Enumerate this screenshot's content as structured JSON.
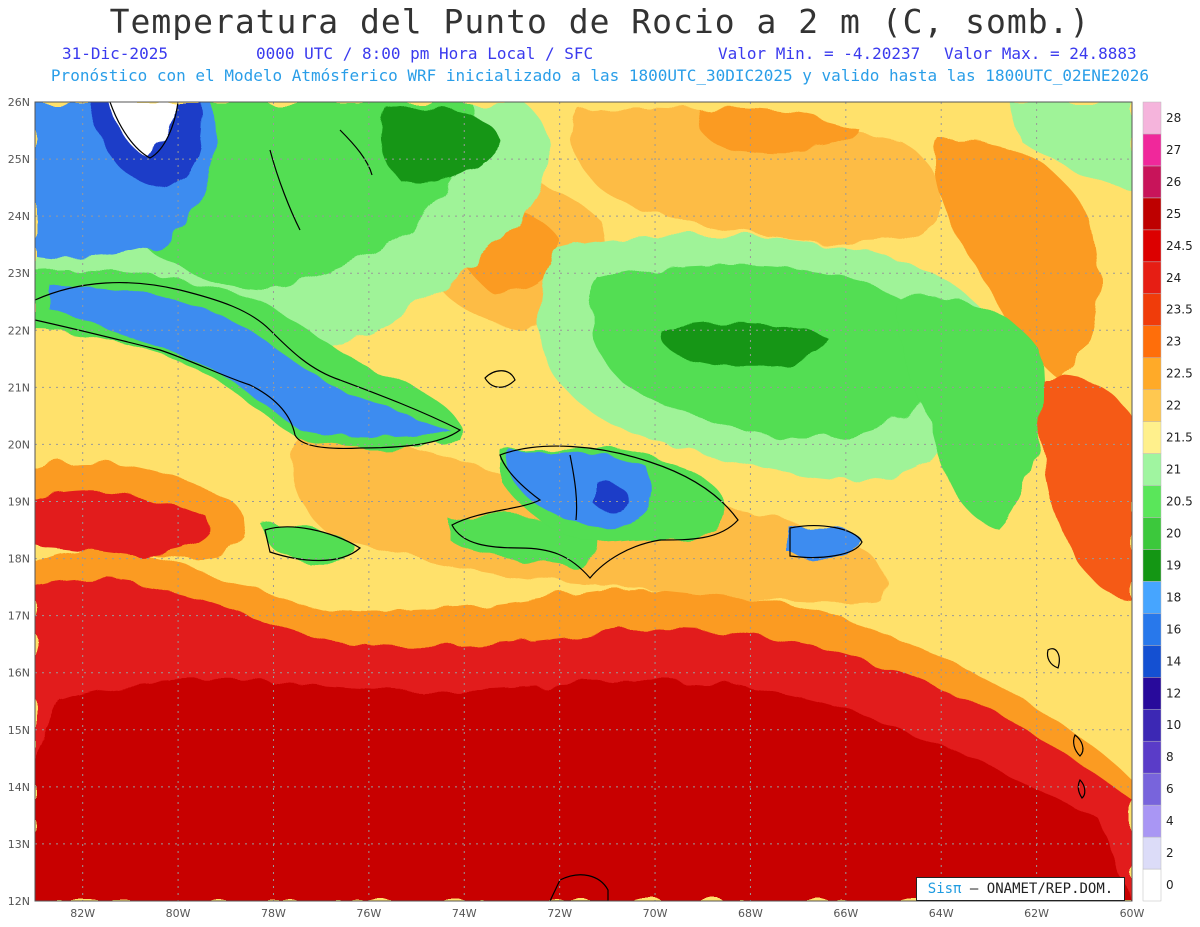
{
  "header": {
    "title": "Temperatura del Punto de Rocio a 2 m (C, somb.)",
    "date": "31-Dic-2025",
    "time_info": "0000 UTC / 8:00 pm Hora Local / SFC",
    "min_value": "Valor Min. = -4.20237",
    "max_value": "Valor Max. = 24.8883",
    "model_info": "Pronóstico con el Modelo Atmósferico WRF inicializado a las 1800UTC_30DIC2025 y valido hasta las  1800UTC_02ENE2026"
  },
  "map": {
    "lat_range": [
      12,
      26
    ],
    "lon_range": [
      -83,
      -60
    ],
    "lat_labels": [
      "12N",
      "13N",
      "14N",
      "15N",
      "16N",
      "17N",
      "18N",
      "19N",
      "20N",
      "21N",
      "22N",
      "23N",
      "24N",
      "25N",
      "26N"
    ],
    "lon_labels": [
      "82W",
      "80W",
      "78W",
      "76W",
      "74W",
      "72W",
      "70W",
      "68W",
      "66W",
      "64W",
      "62W",
      "60W"
    ],
    "lon_values": [
      -82,
      -80,
      -78,
      -76,
      -74,
      -72,
      -70,
      -68,
      -66,
      -64,
      -62,
      -60
    ],
    "colors": {
      "background": "#ffe16b",
      "deep_red": "#c80000",
      "red": "#e21a1a",
      "orange_red": "#f55a14",
      "orange": "#fb9b20",
      "light_orange": "#fdbc45",
      "light_green": "#9ff398",
      "green": "#52de52",
      "blue": "#3c8cf0",
      "dark_blue": "#1e3cc8",
      "coastline": "#000000"
    }
  },
  "colorbar": {
    "labels": [
      "0",
      "2",
      "4",
      "6",
      "8",
      "10",
      "12",
      "14",
      "16",
      "18",
      "19",
      "20",
      "20.5",
      "21",
      "21.5",
      "22",
      "22.5",
      "23",
      "23.5",
      "24",
      "24.5",
      "25",
      "26",
      "27",
      "28"
    ],
    "colors": [
      "#ffffff",
      "#dcdcf8",
      "#a996f4",
      "#7864dc",
      "#5a3cc8",
      "#3c28b4",
      "#280a9b",
      "#1450d2",
      "#2878eb",
      "#46a5ff",
      "#149614",
      "#3cc83c",
      "#5ae65a",
      "#a0f5a0",
      "#fff08c",
      "#ffc850",
      "#ffaa28",
      "#ff6e0a",
      "#f03c0a",
      "#e61e14",
      "#dc0000",
      "#be0000",
      "#c8145a",
      "#f0289b",
      "#f5b4dc"
    ]
  },
  "credit": {
    "logo": "Sisπ",
    "text": "– ONAMET/REP.DOM."
  }
}
